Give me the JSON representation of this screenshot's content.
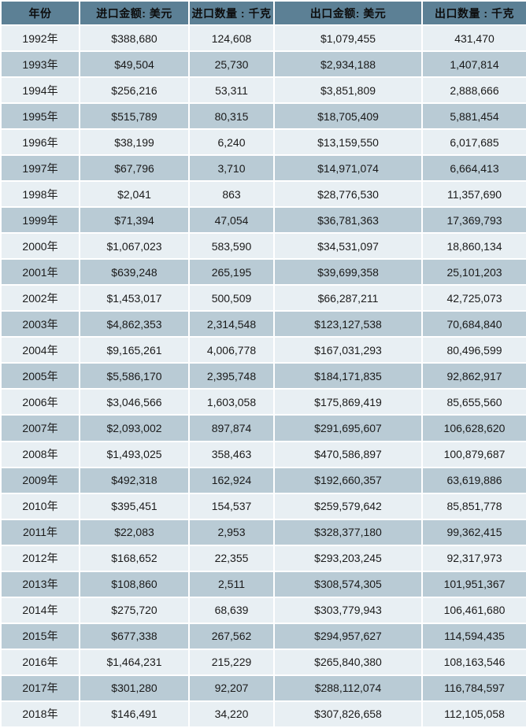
{
  "colors": {
    "header_bg": "#5C8095",
    "row_light": "#E8EFF3",
    "row_dark": "#B9CBD5",
    "text": "#1a1a1a"
  },
  "chart_data": {
    "type": "table",
    "title": "",
    "columns": [
      "年份",
      "进口金额: 美元",
      "进口数量 : 千克",
      "出口金额: 美元",
      "出口数量 : 千克"
    ],
    "rows": [
      [
        "1992年",
        "$388,680",
        "124,608",
        "$1,079,455",
        "431,470"
      ],
      [
        "1993年",
        "$49,504",
        "25,730",
        "$2,934,188",
        "1,407,814"
      ],
      [
        "1994年",
        "$256,216",
        "53,311",
        "$3,851,809",
        "2,888,666"
      ],
      [
        "1995年",
        "$515,789",
        "80,315",
        "$18,705,409",
        "5,881,454"
      ],
      [
        "1996年",
        "$38,199",
        "6,240",
        "$13,159,550",
        "6,017,685"
      ],
      [
        "1997年",
        "$67,796",
        "3,710",
        "$14,971,074",
        "6,664,413"
      ],
      [
        "1998年",
        "$2,041",
        "863",
        "$28,776,530",
        "11,357,690"
      ],
      [
        "1999年",
        "$71,394",
        "47,054",
        "$36,781,363",
        "17,369,793"
      ],
      [
        "2000年",
        "$1,067,023",
        "583,590",
        "$34,531,097",
        "18,860,134"
      ],
      [
        "2001年",
        "$639,248",
        "265,195",
        "$39,699,358",
        "25,101,203"
      ],
      [
        "2002年",
        "$1,453,017",
        "500,509",
        "$66,287,211",
        "42,725,073"
      ],
      [
        "2003年",
        "$4,862,353",
        "2,314,548",
        "$123,127,538",
        "70,684,840"
      ],
      [
        "2004年",
        "$9,165,261",
        "4,006,778",
        "$167,031,293",
        "80,496,599"
      ],
      [
        "2005年",
        "$5,586,170",
        "2,395,748",
        "$184,171,835",
        "92,862,917"
      ],
      [
        "2006年",
        "$3,046,566",
        "1,603,058",
        "$175,869,419",
        "85,655,560"
      ],
      [
        "2007年",
        "$2,093,002",
        "897,874",
        "$291,695,607",
        "106,628,620"
      ],
      [
        "2008年",
        "$1,493,025",
        "358,463",
        "$470,586,897",
        "100,879,687"
      ],
      [
        "2009年",
        "$492,318",
        "162,924",
        "$192,660,357",
        "63,619,886"
      ],
      [
        "2010年",
        "$395,451",
        "154,537",
        "$259,579,642",
        "85,851,778"
      ],
      [
        "2011年",
        "$22,083",
        "2,953",
        "$328,377,180",
        "99,362,415"
      ],
      [
        "2012年",
        "$168,652",
        "22,355",
        "$293,203,245",
        "92,317,973"
      ],
      [
        "2013年",
        "$108,860",
        "2,511",
        "$308,574,305",
        "101,951,367"
      ],
      [
        "2014年",
        "$275,720",
        "68,639",
        "$303,779,943",
        "106,461,680"
      ],
      [
        "2015年",
        "$677,338",
        "267,562",
        "$294,957,627",
        "114,594,435"
      ],
      [
        "2016年",
        "$1,464,231",
        "215,229",
        "$265,840,380",
        "108,163,546"
      ],
      [
        "2017年",
        "$301,280",
        "92,207",
        "$288,112,074",
        "116,784,597"
      ],
      [
        "2018年",
        "$146,491",
        "34,220",
        "$307,826,658",
        "112,105,058"
      ]
    ]
  }
}
